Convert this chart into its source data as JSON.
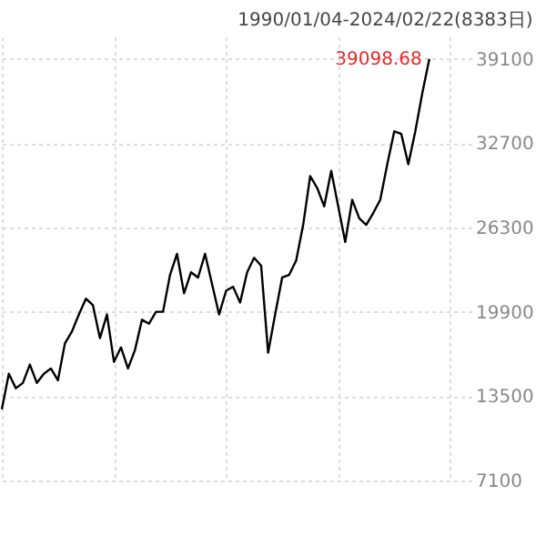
{
  "chart_data": {
    "type": "line",
    "subtitle": "1990/01/04-2024/02/22(8383日)",
    "categories": [
      null,
      null,
      null,
      null,
      null,
      null,
      null,
      null,
      null,
      null,
      null,
      null,
      null,
      null,
      null,
      null,
      null,
      null,
      null,
      null,
      null,
      null,
      null,
      null,
      null,
      null,
      null,
      null,
      null,
      null,
      null,
      null,
      null,
      null,
      null,
      null,
      null,
      null,
      null,
      null,
      null,
      null,
      null,
      null,
      null,
      null,
      null,
      null,
      null,
      null,
      null,
      null,
      null,
      null,
      null,
      null,
      null,
      null,
      null,
      null,
      null,
      null,
      null,
      null,
      null,
      null,
      null,
      null
    ],
    "series": [
      {
        "color": "#000000",
        "values": [
          12500,
          15200,
          14100,
          14500,
          15900,
          14500,
          15200,
          15600,
          14700,
          17500,
          18400,
          19700,
          20900,
          20400,
          17900,
          19700,
          16100,
          17200,
          15600,
          17000,
          19300,
          19000,
          19900,
          19900,
          22700,
          24300,
          21300,
          22900,
          22500,
          24300,
          22000,
          19700,
          21500,
          21800,
          20600,
          22900,
          24000,
          23400,
          16800,
          19700,
          22500,
          22700,
          23800,
          26500,
          30200,
          29300,
          27900,
          30600,
          27900,
          25200,
          28400,
          27000,
          26500,
          27400,
          28400,
          31100,
          33600,
          33400,
          31100,
          33600,
          36500,
          39098.68,
          null,
          null,
          null,
          null,
          null,
          null
        ]
      }
    ],
    "ylim": [
      7100,
      40800
    ],
    "yticks": [
      7100,
      13500,
      19900,
      26300,
      32700,
      39100
    ],
    "grid": true,
    "tick_labels": "y",
    "legend": false,
    "annotations": [
      "39098.68"
    ]
  }
}
